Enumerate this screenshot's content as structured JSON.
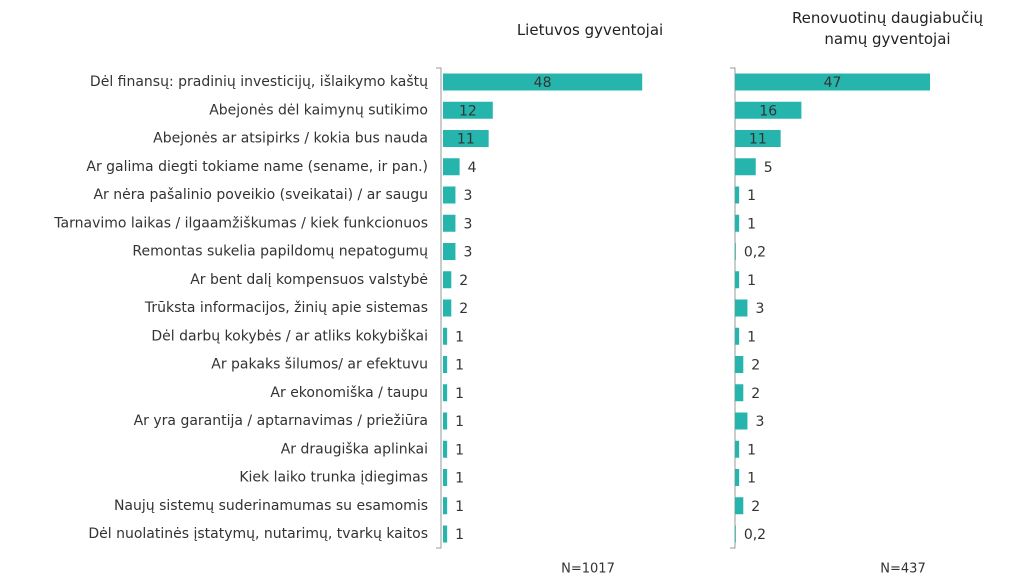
{
  "chart_data": {
    "type": "bar",
    "orientation": "horizontal",
    "categories": [
      "Dėl finansų: pradinių investicijų, išlaikymo kaštų",
      "Abejonės dėl kaimynų sutikimo",
      "Abejonės ar atsipirks / kokia bus nauda",
      "Ar galima diegti tokiame name (sename, ir pan.)",
      "Ar nėra pašalinio poveikio (sveikatai) / ar saugu",
      "Tarnavimo laikas / ilgaamžiškumas / kiek funkcionuos",
      "Remontas sukelia papildomų nepatogumų",
      "Ar bent dalį kompensuos valstybė",
      "Trūksta informacijos, žinių apie sistemas",
      "Dėl darbų kokybės / ar atliks kokybiškai",
      "Ar pakaks šilumos/ ar efektuvu",
      "Ar ekonomiška / taupu",
      "Ar yra garantija / aptarnavimas / priežiūra",
      "Ar draugiška aplinkai",
      "Kiek laiko trunka įdiegimas",
      "Naujų sistemų suderinamumas su esamomis",
      "Dėl nuolatinės įstatymų, nutarimų, tvarkų kaitos"
    ],
    "series": [
      {
        "name": "Lietuvos gyventojai",
        "color": "#26b5ac",
        "sample_label": "N=1017",
        "values": [
          48,
          12,
          11,
          4,
          3,
          3,
          3,
          2,
          2,
          1,
          1,
          1,
          1,
          1,
          1,
          1,
          1
        ]
      },
      {
        "name": "Renovuotinų daugiabučių namų gyventojai",
        "color": "#26b5ac",
        "sample_label": "N=437",
        "values": [
          47,
          16,
          11,
          5,
          1,
          1,
          0.2,
          1,
          3,
          1,
          2,
          2,
          3,
          1,
          1,
          2,
          0.2
        ],
        "value_labels": [
          "47",
          "16",
          "11",
          "5",
          "1",
          "1",
          "0,2",
          "1",
          "3",
          "1",
          "2",
          "2",
          "3",
          "1",
          "1",
          "2",
          "0,2"
        ]
      }
    ]
  }
}
